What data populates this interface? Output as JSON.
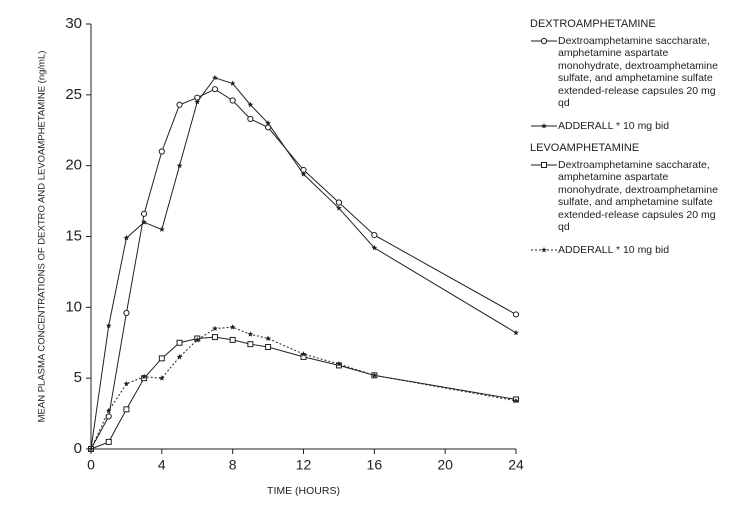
{
  "chart_data": {
    "type": "line",
    "x_label": "TIME (HOURS)",
    "y_label": "MEAN PLASMA CONCENTRATIONS OF DEXTRO AND LEVOAMPHETAMINE (ng/mL)",
    "legend_titles": [
      "DEXTROAMPHETAMINE",
      "LEVOAMPHETAMINE"
    ],
    "x": [
      0,
      1,
      2,
      3,
      4,
      5,
      6,
      7,
      8,
      9,
      10,
      12,
      14,
      16,
      24
    ],
    "series": [
      {
        "name": "Dextroamphetamine saccharate, amphetamine aspartate monohydrate, dextroamphetamine sulfate, and amphetamine sulfate extended-release capsules 20 mg qd",
        "color": "#222222",
        "marker": "circle",
        "linestyle": "solid",
        "values": [
          0,
          2.3,
          9.6,
          16.6,
          21,
          24.3,
          24.8,
          25.4,
          24.6,
          23.3,
          22.7,
          19.7,
          17.4,
          15.1,
          9.5
        ]
      },
      {
        "name": "ADDERALL * 10 mg bid",
        "color": "#222222",
        "marker": "star",
        "linestyle": "solid",
        "values": [
          0,
          8.7,
          14.9,
          16,
          15.5,
          20,
          24.5,
          26.2,
          25.8,
          24.3,
          23,
          19.4,
          17,
          14.2,
          8.2
        ]
      },
      {
        "name": "Dextroamphetamine saccharate, amphetamine aspartate monohydrate, dextroamphetamine sulfate, and amphetamine sulfate extended-release capsules 20 mg qd",
        "color": "#222222",
        "marker": "square",
        "linestyle": "solid",
        "values": [
          0,
          0.5,
          2.8,
          5,
          6.4,
          7.5,
          7.8,
          7.9,
          7.7,
          7.4,
          7.2,
          6.5,
          5.9,
          5.2,
          3.5
        ]
      },
      {
        "name": "ADDERALL * 10 mg bid",
        "color": "#222222",
        "marker": "star",
        "linestyle": "dotted",
        "values": [
          0,
          2.7,
          4.6,
          5.1,
          5,
          6.5,
          7.7,
          8.5,
          8.6,
          8.1,
          7.8,
          6.7,
          6.0,
          5.2,
          3.4
        ]
      }
    ],
    "xlim": [
      0,
      24
    ],
    "xticks": [
      0,
      4,
      8,
      12,
      16,
      20,
      24
    ],
    "ylim": [
      0,
      30
    ],
    "yticks": [
      0,
      5,
      10,
      15,
      20,
      25,
      30
    ]
  }
}
